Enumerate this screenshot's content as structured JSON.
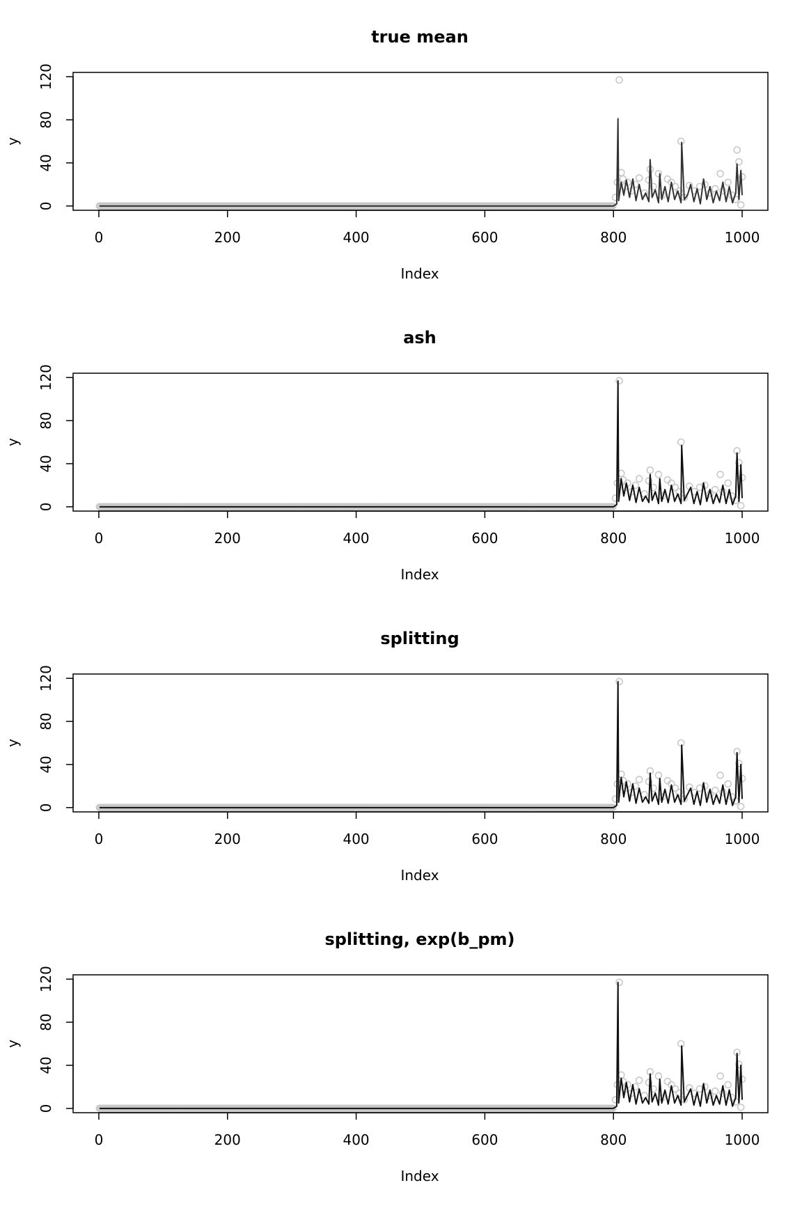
{
  "figure": {
    "background": "#ffffff",
    "point_color": "#c8c8c8",
    "line_color": "#111111",
    "true_mean_line_color": "#333333"
  },
  "chart_data": [
    {
      "type": "scatter",
      "title": "true mean",
      "xlabel": "Index",
      "ylabel": "y",
      "xlim": [
        -40,
        1040
      ],
      "ylim": [
        -4,
        124
      ],
      "xticks": [
        0,
        200,
        400,
        600,
        800,
        1000
      ],
      "yticks": [
        0,
        40,
        80,
        120
      ],
      "grid": false,
      "legend": "none",
      "series": [
        {
          "kind": "points",
          "note_zero_run": [
            1,
            800
          ],
          "x": [
            803,
            806,
            809,
            812,
            815,
            818,
            822,
            828,
            834,
            840,
            848,
            855,
            857,
            862,
            870,
            876,
            884,
            890,
            896,
            902,
            905,
            910,
            918,
            926,
            934,
            942,
            950,
            958,
            966,
            970,
            978,
            984,
            990,
            992,
            995,
            998,
            1000
          ],
          "y": [
            8,
            22,
            117,
            31,
            25,
            18,
            22,
            14,
            20,
            26,
            12,
            24,
            34,
            18,
            30,
            10,
            25,
            22,
            18,
            14,
            60,
            8,
            19,
            14,
            18,
            20,
            12,
            16,
            30,
            14,
            22,
            10,
            6,
            52,
            41,
            1,
            27
          ]
        },
        {
          "kind": "line",
          "x": [
            800,
            805,
            807,
            808,
            812,
            816,
            820,
            825,
            830,
            835,
            840,
            845,
            850,
            855,
            857,
            860,
            865,
            870,
            872,
            875,
            880,
            885,
            890,
            895,
            900,
            905,
            906,
            910,
            915,
            920,
            925,
            930,
            935,
            940,
            945,
            950,
            955,
            960,
            965,
            970,
            975,
            980,
            985,
            990,
            992,
            995,
            998,
            1000
          ],
          "y": [
            0,
            2,
            81,
            5,
            22,
            10,
            24,
            8,
            25,
            5,
            20,
            6,
            12,
            4,
            43,
            8,
            15,
            3,
            30,
            6,
            18,
            4,
            22,
            6,
            14,
            3,
            59,
            6,
            10,
            20,
            4,
            16,
            2,
            25,
            6,
            18,
            3,
            14,
            5,
            22,
            4,
            18,
            3,
            12,
            39,
            6,
            33,
            10
          ]
        }
      ]
    },
    {
      "type": "scatter",
      "title": "ash",
      "xlabel": "Index",
      "ylabel": "y",
      "xlim": [
        -40,
        1040
      ],
      "ylim": [
        -4,
        124
      ],
      "xticks": [
        0,
        200,
        400,
        600,
        800,
        1000
      ],
      "yticks": [
        0,
        40,
        80,
        120
      ],
      "grid": false,
      "legend": "none",
      "series": [
        {
          "kind": "points",
          "x": [
            803,
            806,
            809,
            812,
            815,
            818,
            822,
            828,
            834,
            840,
            848,
            855,
            857,
            862,
            870,
            876,
            884,
            890,
            896,
            902,
            905,
            910,
            918,
            926,
            934,
            942,
            950,
            958,
            966,
            970,
            978,
            984,
            990,
            992,
            995,
            998,
            1000
          ],
          "y": [
            8,
            22,
            117,
            31,
            25,
            18,
            22,
            14,
            20,
            26,
            12,
            24,
            34,
            18,
            30,
            10,
            25,
            22,
            18,
            14,
            60,
            8,
            19,
            14,
            18,
            20,
            12,
            16,
            30,
            14,
            22,
            10,
            6,
            52,
            41,
            1,
            27
          ]
        },
        {
          "kind": "line",
          "x": [
            800,
            805,
            807,
            808,
            812,
            816,
            820,
            825,
            830,
            835,
            840,
            845,
            850,
            855,
            857,
            860,
            865,
            870,
            872,
            875,
            880,
            885,
            890,
            895,
            900,
            905,
            906,
            910,
            915,
            920,
            925,
            930,
            935,
            940,
            945,
            950,
            955,
            960,
            965,
            970,
            975,
            980,
            985,
            990,
            992,
            995,
            998,
            1000
          ],
          "y": [
            0,
            2,
            117,
            5,
            26,
            10,
            22,
            6,
            20,
            4,
            18,
            5,
            10,
            4,
            30,
            6,
            14,
            3,
            26,
            5,
            16,
            4,
            20,
            5,
            12,
            3,
            57,
            6,
            12,
            18,
            3,
            14,
            2,
            22,
            5,
            16,
            3,
            12,
            4,
            20,
            3,
            16,
            2,
            10,
            50,
            5,
            39,
            8
          ]
        }
      ]
    },
    {
      "type": "scatter",
      "title": "splitting",
      "xlabel": "Index",
      "ylabel": "y",
      "xlim": [
        -40,
        1040
      ],
      "ylim": [
        -4,
        124
      ],
      "xticks": [
        0,
        200,
        400,
        600,
        800,
        1000
      ],
      "yticks": [
        0,
        40,
        80,
        120
      ],
      "grid": false,
      "legend": "none",
      "series": [
        {
          "kind": "points",
          "x": [
            803,
            806,
            809,
            812,
            815,
            818,
            822,
            828,
            834,
            840,
            848,
            855,
            857,
            862,
            870,
            876,
            884,
            890,
            896,
            902,
            905,
            910,
            918,
            926,
            934,
            942,
            950,
            958,
            966,
            970,
            978,
            984,
            990,
            992,
            995,
            998,
            1000
          ],
          "y": [
            8,
            22,
            117,
            31,
            25,
            18,
            22,
            14,
            20,
            26,
            12,
            24,
            34,
            18,
            30,
            10,
            25,
            22,
            18,
            14,
            60,
            8,
            19,
            14,
            18,
            20,
            12,
            16,
            30,
            14,
            22,
            10,
            6,
            52,
            41,
            1,
            27
          ]
        },
        {
          "kind": "line",
          "x": [
            800,
            805,
            807,
            808,
            812,
            816,
            820,
            825,
            830,
            835,
            840,
            845,
            850,
            855,
            857,
            860,
            865,
            870,
            872,
            875,
            880,
            885,
            890,
            895,
            900,
            905,
            906,
            910,
            915,
            920,
            925,
            930,
            935,
            940,
            945,
            950,
            955,
            960,
            965,
            970,
            975,
            980,
            985,
            990,
            992,
            995,
            998,
            1000
          ],
          "y": [
            0,
            2,
            117,
            5,
            28,
            10,
            24,
            6,
            22,
            4,
            18,
            5,
            10,
            4,
            32,
            6,
            14,
            3,
            27,
            5,
            17,
            4,
            21,
            5,
            12,
            3,
            58,
            6,
            12,
            18,
            3,
            15,
            2,
            23,
            5,
            17,
            3,
            12,
            4,
            21,
            3,
            17,
            2,
            10,
            51,
            5,
            40,
            8
          ]
        }
      ]
    },
    {
      "type": "scatter",
      "title": "splitting, exp(b_pm)",
      "xlabel": "Index",
      "ylabel": "y",
      "xlim": [
        -40,
        1040
      ],
      "ylim": [
        -4,
        124
      ],
      "xticks": [
        0,
        200,
        400,
        600,
        800,
        1000
      ],
      "yticks": [
        0,
        40,
        80,
        120
      ],
      "grid": false,
      "legend": "none",
      "series": [
        {
          "kind": "points",
          "x": [
            803,
            806,
            809,
            812,
            815,
            818,
            822,
            828,
            834,
            840,
            848,
            855,
            857,
            862,
            870,
            876,
            884,
            890,
            896,
            902,
            905,
            910,
            918,
            926,
            934,
            942,
            950,
            958,
            966,
            970,
            978,
            984,
            990,
            992,
            995,
            998,
            1000
          ],
          "y": [
            8,
            22,
            117,
            31,
            25,
            18,
            22,
            14,
            20,
            26,
            12,
            24,
            34,
            18,
            30,
            10,
            25,
            22,
            18,
            14,
            60,
            8,
            19,
            14,
            18,
            20,
            12,
            16,
            30,
            14,
            22,
            10,
            6,
            52,
            41,
            1,
            27
          ]
        },
        {
          "kind": "line",
          "x": [
            800,
            805,
            807,
            808,
            812,
            816,
            820,
            825,
            830,
            835,
            840,
            845,
            850,
            855,
            857,
            860,
            865,
            870,
            872,
            875,
            880,
            885,
            890,
            895,
            900,
            905,
            906,
            910,
            915,
            920,
            925,
            930,
            935,
            940,
            945,
            950,
            955,
            960,
            965,
            970,
            975,
            980,
            985,
            990,
            992,
            995,
            998,
            1000
          ],
          "y": [
            0,
            2,
            117,
            5,
            28,
            10,
            24,
            6,
            22,
            4,
            18,
            5,
            10,
            4,
            32,
            6,
            14,
            3,
            27,
            5,
            17,
            4,
            21,
            5,
            12,
            3,
            58,
            6,
            12,
            18,
            3,
            15,
            2,
            23,
            5,
            17,
            3,
            12,
            4,
            21,
            3,
            17,
            2,
            10,
            51,
            5,
            40,
            8
          ]
        }
      ]
    }
  ]
}
